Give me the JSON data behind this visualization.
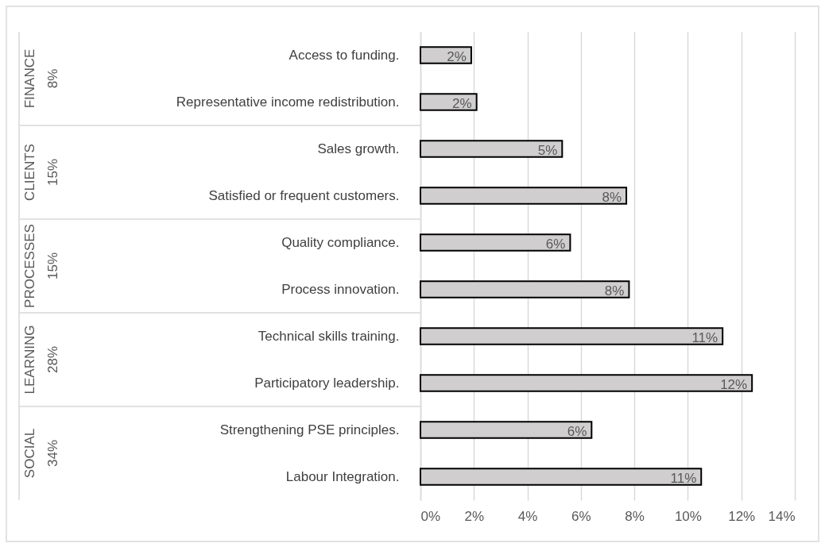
{
  "chart_data": {
    "type": "bar",
    "orientation": "horizontal",
    "categories": [
      "Access to funding.",
      "Representative income redistribution.",
      "Sales growth.",
      "Satisfied or frequent customers.",
      "Quality compliance.",
      "Process innovation.",
      "Technical skills training.",
      "Participatory leadership.",
      "Strengthening PSE principles.",
      "Labour Integration."
    ],
    "values": [
      1.9,
      2.1,
      5.3,
      7.7,
      5.6,
      7.8,
      11.3,
      12.4,
      6.4,
      10.5
    ],
    "value_labels": [
      "2%",
      "2%",
      "5%",
      "8%",
      "6%",
      "8%",
      "11%",
      "12%",
      "6%",
      "11%"
    ],
    "color": "#d0cece",
    "xlim": [
      0,
      14
    ],
    "xticks": [
      {
        "value": 0,
        "label": "0%"
      },
      {
        "value": 2,
        "label": "2%"
      },
      {
        "value": 4,
        "label": "4%"
      },
      {
        "value": 6,
        "label": "6%"
      },
      {
        "value": 8,
        "label": "8%"
      },
      {
        "value": 10,
        "label": "10%"
      },
      {
        "value": 12,
        "label": "12%"
      },
      {
        "value": 14,
        "label": "14%"
      }
    ],
    "grid": "x",
    "annotations": [
      "FINANCE",
      "8%",
      "CLIENTS",
      "15%",
      "PROCESSES",
      "15%",
      "LEARNING",
      "28%",
      "SOCIAL",
      "34%"
    ]
  }
}
